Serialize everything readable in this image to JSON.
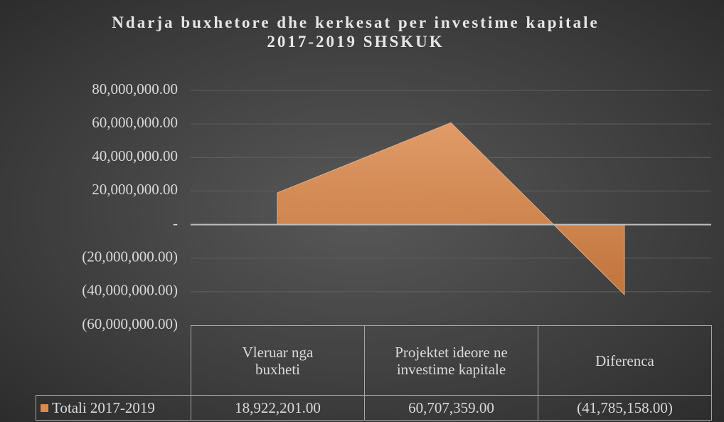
{
  "chart_data": {
    "type": "area",
    "title": "Ndarja buxhetore dhe kerkesat per investime kapitale 2017-2019 SHSKUK",
    "categories": [
      "Vleruar nga buxheti",
      "Projektet ideore ne investime kapitale",
      "Diferenca"
    ],
    "series": [
      {
        "name": "Totali 2017-2019",
        "color": "#d98a4e",
        "values": [
          18922201,
          60707359,
          -41785158
        ],
        "value_labels": [
          "18,922,201.00",
          "60,707,359.00",
          "(41,785,158.00)"
        ]
      }
    ],
    "ylim": [
      -60000000,
      80000000
    ],
    "yticks": [
      {
        "value": -60000000,
        "label": "(60,000,000.00)"
      },
      {
        "value": -40000000,
        "label": "(40,000,000.00)"
      },
      {
        "value": -20000000,
        "label": "(20,000,000.00)"
      },
      {
        "value": 0,
        "label": "-"
      },
      {
        "value": 20000000,
        "label": "20,000,000.00"
      },
      {
        "value": 40000000,
        "label": "40,000,000.00"
      },
      {
        "value": 60000000,
        "label": "60,000,000.00"
      },
      {
        "value": 80000000,
        "label": "80,000,000.00"
      }
    ],
    "grid": true,
    "data_table": true
  }
}
